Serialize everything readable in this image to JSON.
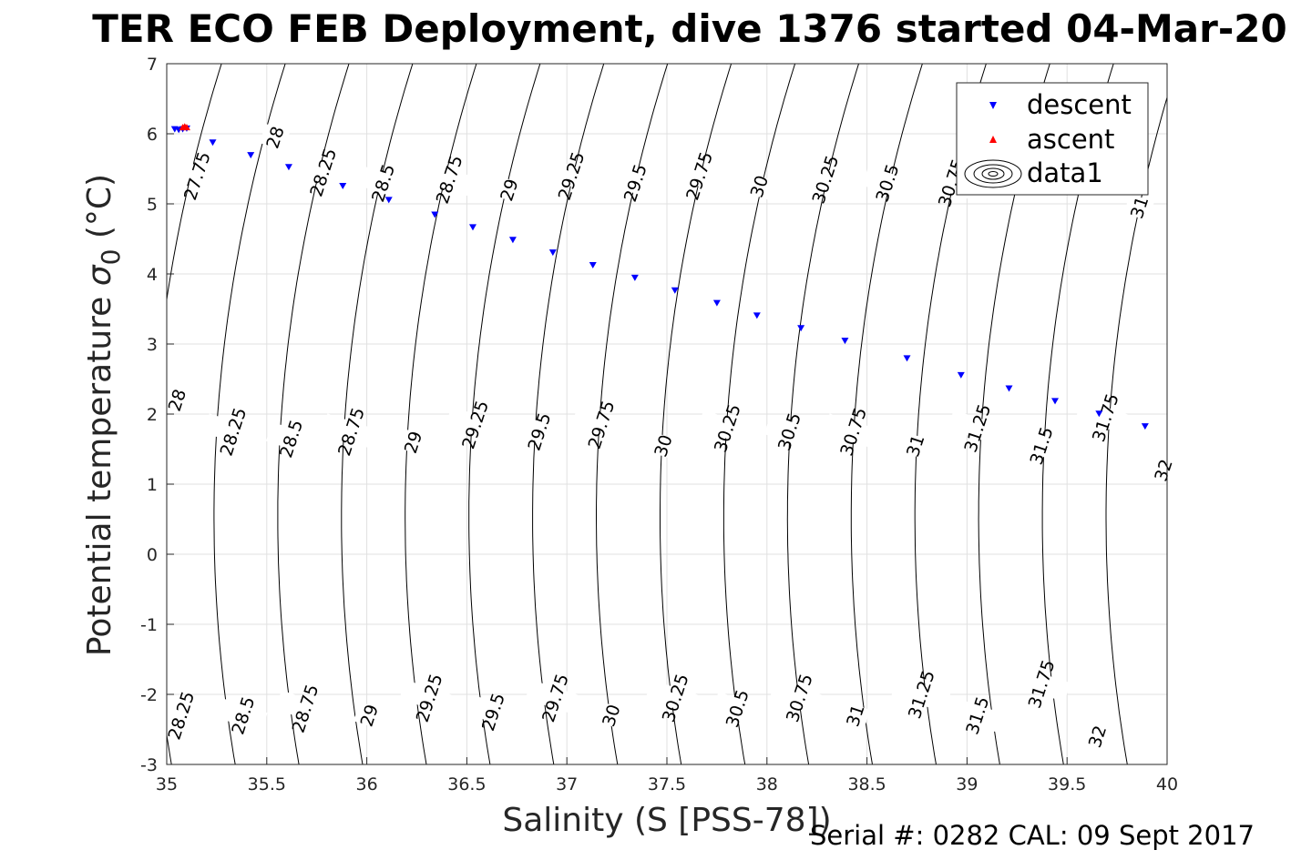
{
  "chart_data": {
    "type": "scatter",
    "title": "TER ECO FEB Deployment, dive 1376 started 04-Mar-20",
    "xlabel": "Salinity (S [PSS-78])",
    "ylabel_main": "Potential temperature ",
    "ylabel_sigma": "σ",
    "ylabel_sub": "0",
    "ylabel_unit": " (°C)",
    "footer": "Serial #: 0282  CAL: 09 Sept 2017",
    "xlim": [
      35,
      40
    ],
    "ylim": [
      -3,
      7
    ],
    "grid": true,
    "legend_position": "top-right",
    "x_ticks": [
      "35",
      "35.5",
      "36",
      "36.5",
      "37",
      "37.5",
      "38",
      "38.5",
      "39",
      "39.5",
      "40"
    ],
    "y_ticks": [
      "-3",
      "-2",
      "-1",
      "0",
      "1",
      "2",
      "3",
      "4",
      "5",
      "6",
      "7"
    ],
    "series": [
      {
        "name": "descent",
        "marker": "triangle-down",
        "color": "#0000ff",
        "x": [
          35.04,
          35.06,
          35.08,
          35.1,
          35.23,
          35.42,
          35.61,
          35.88,
          36.11,
          36.34,
          36.53,
          36.73,
          36.93,
          37.13,
          37.34,
          37.54,
          37.75,
          37.95,
          38.17,
          38.39,
          38.7,
          38.97,
          39.21,
          39.44,
          39.66,
          39.89
        ],
        "y": [
          6.07,
          6.06,
          6.07,
          6.08,
          5.88,
          5.7,
          5.53,
          5.26,
          5.06,
          4.85,
          4.67,
          4.49,
          4.31,
          4.13,
          3.95,
          3.77,
          3.59,
          3.41,
          3.23,
          3.05,
          2.8,
          2.56,
          2.37,
          2.19,
          2.01,
          1.83
        ]
      },
      {
        "name": "ascent",
        "marker": "triangle-up",
        "color": "#ff0000",
        "x": [
          35.08,
          35.09,
          35.1
        ],
        "y": [
          6.09,
          6.1,
          6.09
        ]
      },
      {
        "name": "data1",
        "marker": "contour",
        "color": "#000000"
      }
    ],
    "contours": {
      "color": "#000000",
      "levels": [
        "27.75",
        "28",
        "28.25",
        "28.5",
        "28.75",
        "29",
        "29.25",
        "29.5",
        "29.75",
        "30",
        "30.25",
        "30.5",
        "30.75",
        "31",
        "31.25",
        "31.5",
        "31.75",
        "32"
      ],
      "level_values": [
        27.75,
        28,
        28.25,
        28.5,
        28.75,
        29,
        29.25,
        29.5,
        29.75,
        30,
        30.25,
        30.5,
        30.75,
        31,
        31.25,
        31.5,
        31.75,
        32
      ],
      "labels": [
        {
          "text": "27.75",
          "s": 35.15,
          "t": 5.4
        },
        {
          "text": "28",
          "s": 35.54,
          "t": 5.95
        },
        {
          "text": "28.25",
          "s": 35.78,
          "t": 5.45
        },
        {
          "text": "28.5",
          "s": 36.08,
          "t": 5.3
        },
        {
          "text": "28.75",
          "s": 36.41,
          "t": 5.35
        },
        {
          "text": "29",
          "s": 36.71,
          "t": 5.2
        },
        {
          "text": "29.25",
          "s": 37.02,
          "t": 5.4
        },
        {
          "text": "29.5",
          "s": 37.34,
          "t": 5.3
        },
        {
          "text": "29.75",
          "s": 37.66,
          "t": 5.4
        },
        {
          "text": "30",
          "s": 37.96,
          "t": 5.25
        },
        {
          "text": "30.25",
          "s": 38.29,
          "t": 5.35
        },
        {
          "text": "30.5",
          "s": 38.6,
          "t": 5.3
        },
        {
          "text": "30.75",
          "s": 38.92,
          "t": 5.3
        },
        {
          "text": "31",
          "s": 39.86,
          "t": 4.95
        },
        {
          "text": "28",
          "s": 35.05,
          "t": 2.2
        },
        {
          "text": "28.25",
          "s": 35.33,
          "t": 1.75
        },
        {
          "text": "28.5",
          "s": 35.62,
          "t": 1.65
        },
        {
          "text": "28.75",
          "s": 35.92,
          "t": 1.75
        },
        {
          "text": "29",
          "s": 36.23,
          "t": 1.6
        },
        {
          "text": "29.25",
          "s": 36.54,
          "t": 1.85
        },
        {
          "text": "29.5",
          "s": 36.86,
          "t": 1.75
        },
        {
          "text": "29.75",
          "s": 37.17,
          "t": 1.85
        },
        {
          "text": "30",
          "s": 37.48,
          "t": 1.55
        },
        {
          "text": "30.25",
          "s": 37.8,
          "t": 1.8
        },
        {
          "text": "30.5",
          "s": 38.11,
          "t": 1.75
        },
        {
          "text": "30.75",
          "s": 38.43,
          "t": 1.75
        },
        {
          "text": "31",
          "s": 38.74,
          "t": 1.55
        },
        {
          "text": "31.25",
          "s": 39.05,
          "t": 1.8
        },
        {
          "text": "31.5",
          "s": 39.37,
          "t": 1.55
        },
        {
          "text": "31.75",
          "s": 39.69,
          "t": 1.95
        },
        {
          "text": "32",
          "s": 39.98,
          "t": 1.2
        },
        {
          "text": "28.25",
          "s": 35.07,
          "t": -2.3
        },
        {
          "text": "28.5",
          "s": 35.38,
          "t": -2.3
        },
        {
          "text": "28.75",
          "s": 35.69,
          "t": -2.2
        },
        {
          "text": "29",
          "s": 36.01,
          "t": -2.3
        },
        {
          "text": "29.25",
          "s": 36.31,
          "t": -2.05
        },
        {
          "text": "29.5",
          "s": 36.63,
          "t": -2.25
        },
        {
          "text": "29.75",
          "s": 36.94,
          "t": -2.05
        },
        {
          "text": "30",
          "s": 37.22,
          "t": -2.3
        },
        {
          "text": "30.25",
          "s": 37.54,
          "t": -2.05
        },
        {
          "text": "30.5",
          "s": 37.85,
          "t": -2.2
        },
        {
          "text": "30.75",
          "s": 38.16,
          "t": -2.05
        },
        {
          "text": "31",
          "s": 38.44,
          "t": -2.3
        },
        {
          "text": "31.25",
          "s": 38.77,
          "t": -2.0
        },
        {
          "text": "31.5",
          "s": 39.05,
          "t": -2.3
        },
        {
          "text": "31.75",
          "s": 39.37,
          "t": -1.85
        },
        {
          "text": "32",
          "s": 39.65,
          "t": -2.6
        }
      ]
    }
  }
}
